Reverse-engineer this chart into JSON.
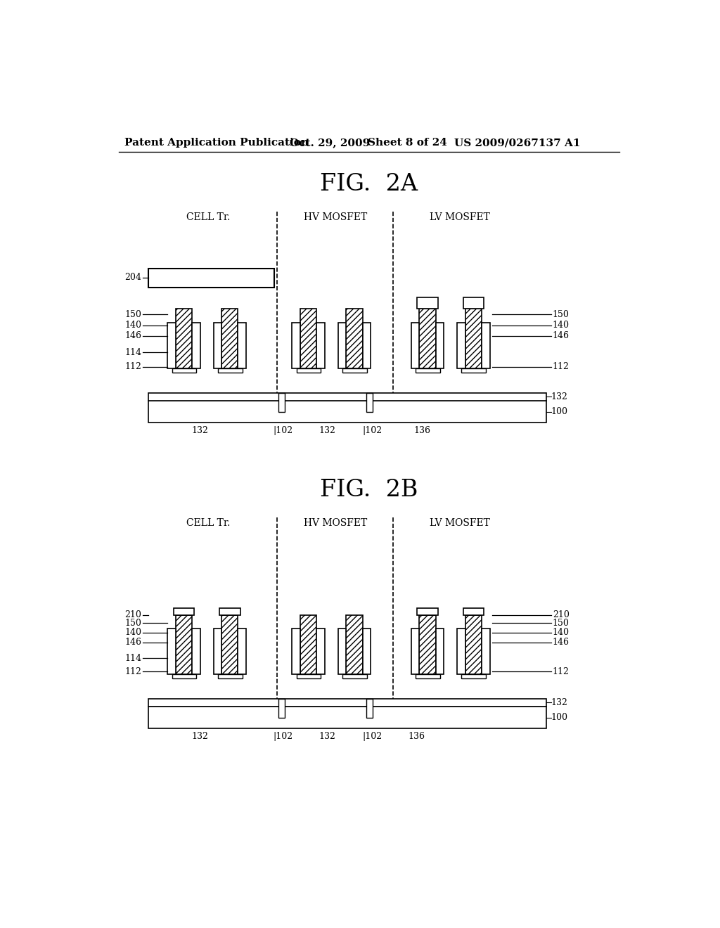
{
  "bg_color": "#ffffff",
  "header_text": "Patent Application Publication",
  "header_date": "Oct. 29, 2009",
  "header_sheet": "Sheet 8 of 24",
  "header_patent": "US 2009/0267137 A1",
  "fig2a_title": "FIG.  2A",
  "fig2b_title": "FIG.  2B",
  "label_cell": "CELL Tr.",
  "label_hv": "HV MOSFET",
  "label_lv": "LV MOSFET",
  "hatch_pattern": "////",
  "line_color": "#000000"
}
